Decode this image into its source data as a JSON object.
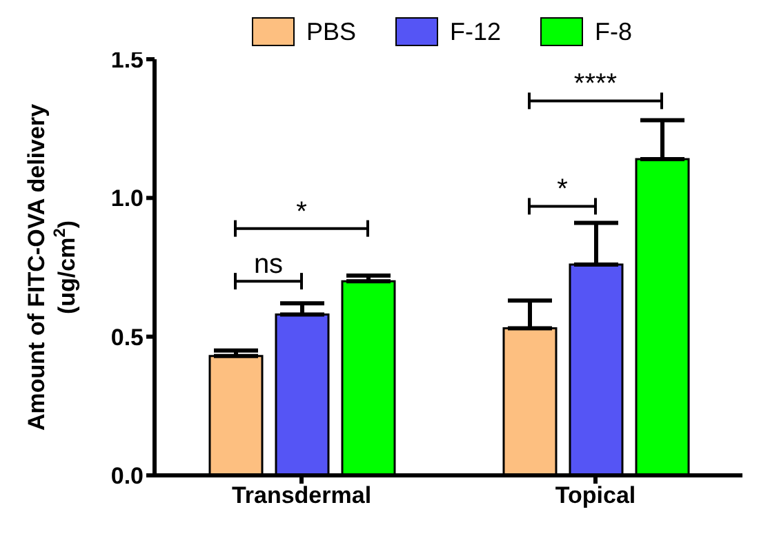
{
  "chart_data": {
    "type": "bar",
    "ylabel": "Amount of FITC-OVA delivery (ug/cm$^{2}$)",
    "categories": [
      "Transdermal",
      "Topical"
    ],
    "series": [
      {
        "name": "PBS",
        "color": "#fdbf80",
        "values": [
          0.43,
          0.53
        ],
        "errors": [
          [
            0.43,
            0.45
          ],
          [
            0.53,
            0.63
          ]
        ]
      },
      {
        "name": "F-12",
        "color": "#5555f5",
        "values": [
          0.58,
          0.76
        ],
        "errors": [
          [
            0.58,
            0.62
          ],
          [
            0.76,
            0.91
          ]
        ]
      },
      {
        "name": "F-8",
        "color": "#00ff00",
        "values": [
          0.7,
          1.14
        ],
        "errors": [
          [
            0.7,
            0.72
          ],
          [
            1.14,
            1.28
          ]
        ]
      }
    ],
    "ylim": [
      0,
      1.5
    ],
    "yticks": [
      {
        "value": 0,
        "label": "0.0"
      },
      {
        "value": 0.5,
        "label": "0.5"
      },
      {
        "value": 1,
        "label": "1.0"
      },
      {
        "value": 1.5,
        "label": "1.5"
      }
    ],
    "annotations": [
      "ns",
      "*",
      "*",
      "****"
    ],
    "legend": "top",
    "grid": false
  }
}
